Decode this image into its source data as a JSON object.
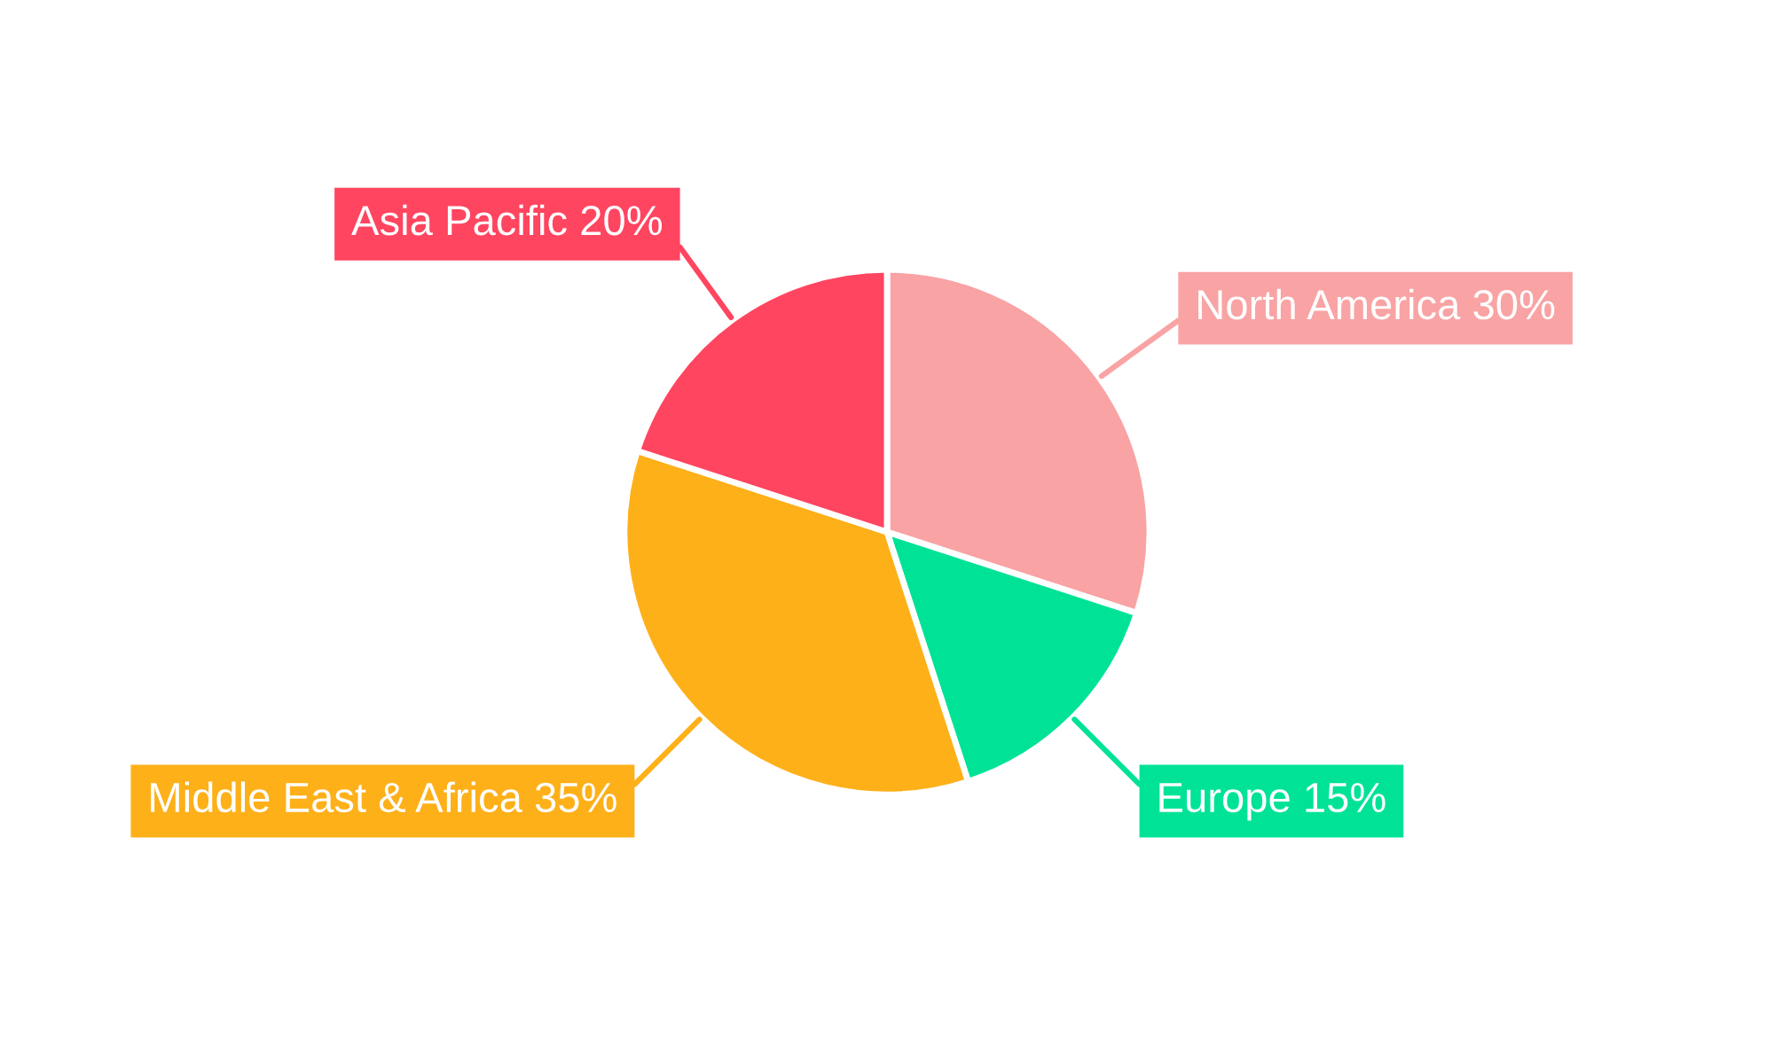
{
  "chart_data": {
    "type": "pie",
    "categories": [
      "North America",
      "Europe",
      "Middle East & Africa",
      "Asia Pacific"
    ],
    "values": [
      30,
      15,
      35,
      20
    ],
    "colors": [
      "#f9a3a4",
      "#00e396",
      "#feb019",
      "#ff4560"
    ],
    "value_labels": [
      "30%",
      "15%",
      "35%",
      "20%"
    ]
  }
}
